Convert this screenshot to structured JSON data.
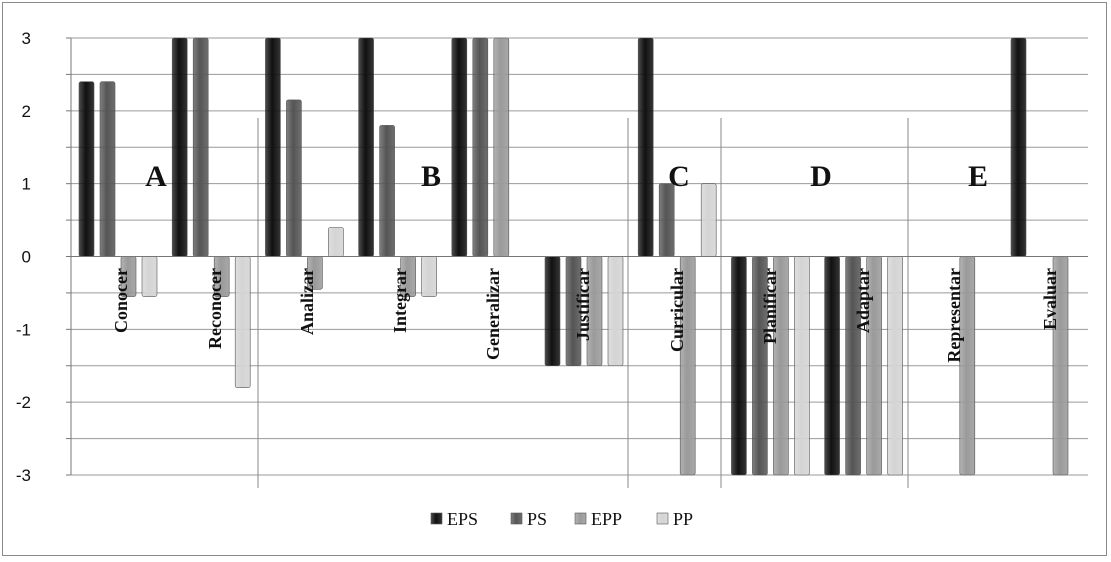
{
  "chart_data": {
    "type": "bar",
    "categories": [
      "Conocer",
      "Reconocer",
      "Analizar",
      "Integrar",
      "Generalizar",
      "Justificar",
      "Curricular",
      "Planificar",
      "Adaptar",
      "Representar",
      "Evaluar"
    ],
    "series": [
      {
        "name": "EPS",
        "color": "#111111",
        "values": [
          2.4,
          3,
          3,
          3,
          3,
          -1.5,
          3,
          -3,
          -3,
          0,
          3
        ]
      },
      {
        "name": "PS",
        "color": "#555555",
        "values": [
          2.4,
          3,
          2.15,
          1.8,
          3,
          -1.5,
          1,
          -3,
          -3,
          0,
          0
        ]
      },
      {
        "name": "EPP",
        "color": "#9a9a9a",
        "values": [
          -0.55,
          -0.55,
          -0.45,
          -0.55,
          3,
          -1.5,
          -3,
          -3,
          -3,
          -3,
          -3
        ]
      },
      {
        "name": "PP",
        "color": "#d4d4d4",
        "values": [
          -0.55,
          -1.8,
          0.4,
          -0.55,
          0,
          -1.5,
          1,
          -3,
          -3,
          0,
          0
        ]
      }
    ],
    "ylim": [
      -3,
      3
    ],
    "yticks": [
      "3",
      "2",
      "1",
      "0",
      "-1",
      "-2",
      "-3"
    ],
    "groups": [
      "A",
      "B",
      "C",
      "D",
      "E"
    ],
    "legend_position": "bottom",
    "grid": true
  }
}
